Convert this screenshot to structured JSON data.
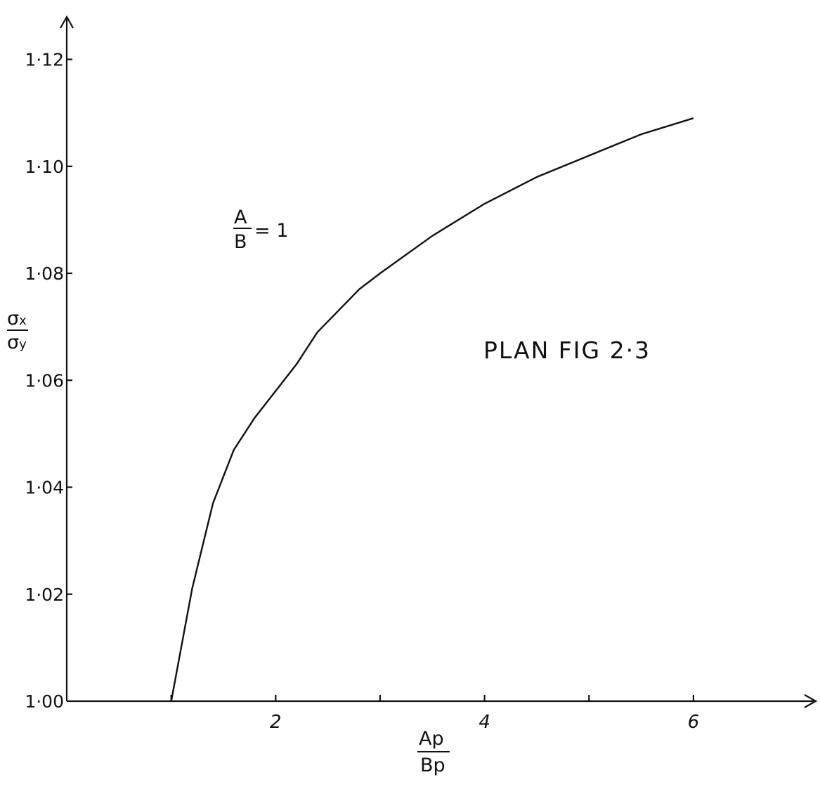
{
  "chart_data": {
    "type": "line",
    "title": "",
    "x_ticks": [
      {
        "value": 1,
        "label": ""
      },
      {
        "value": 2,
        "label": "2"
      },
      {
        "value": 3,
        "label": ""
      },
      {
        "value": 4,
        "label": "4"
      },
      {
        "value": 5,
        "label": ""
      },
      {
        "value": 6,
        "label": "6"
      }
    ],
    "y_ticks": [
      {
        "value": 1.0,
        "label": "1·00"
      },
      {
        "value": 1.02,
        "label": "1·02"
      },
      {
        "value": 1.04,
        "label": "1·04"
      },
      {
        "value": 1.06,
        "label": "1·06"
      },
      {
        "value": 1.08,
        "label": "1·08"
      },
      {
        "value": 1.1,
        "label": "1·10"
      },
      {
        "value": 1.12,
        "label": "1·12"
      }
    ],
    "xlim": [
      0,
      7.05
    ],
    "ylim": [
      1.0,
      1.129
    ],
    "xlabel": {
      "numerator": "A",
      "numerator_sub": "p",
      "denominator": "B",
      "denominator_sub": "p"
    },
    "ylabel": {
      "numerator": "σ",
      "numerator_sub": "x",
      "denominator": "σ",
      "denominator_sub": "y"
    },
    "annotations": {
      "ratio_numerator": "A",
      "ratio_denominator": "B",
      "ratio_value": "= 1",
      "figure_label": "PLAN FIG 2·3"
    },
    "grid": false,
    "legend": "none",
    "series": [
      {
        "x": [
          1.0,
          1.2,
          1.4,
          1.6,
          1.8,
          2.0,
          2.2,
          2.4,
          2.6,
          2.8,
          3.0,
          3.5,
          4.0,
          4.5,
          5.0,
          5.5,
          6.0
        ],
        "y": [
          1.0,
          1.021,
          1.037,
          1.047,
          1.053,
          1.058,
          1.063,
          1.069,
          1.073,
          1.077,
          1.08,
          1.087,
          1.093,
          1.098,
          1.102,
          1.106,
          1.109
        ]
      }
    ]
  }
}
